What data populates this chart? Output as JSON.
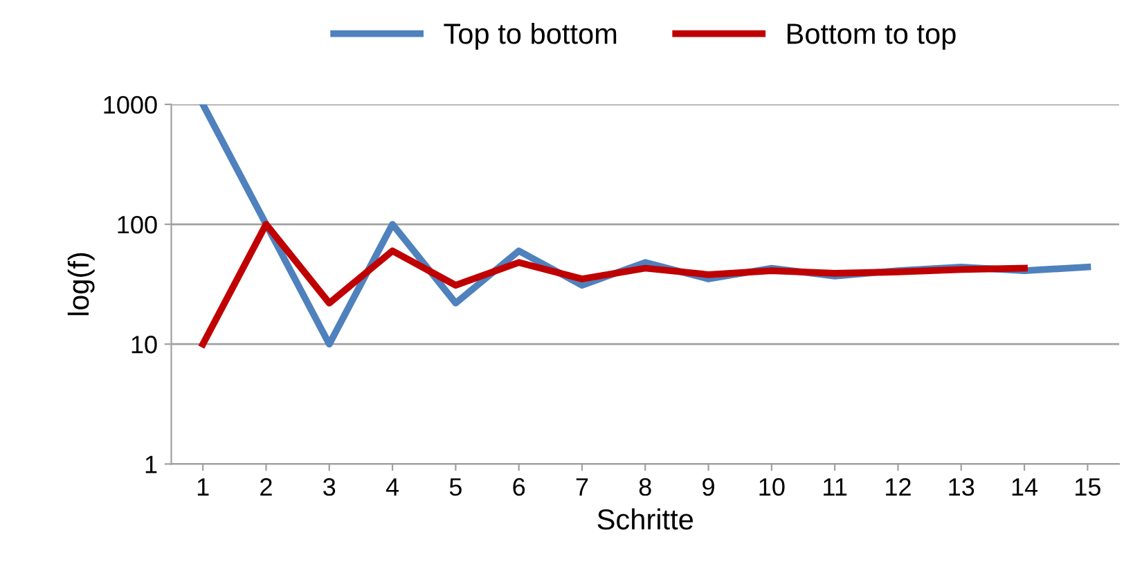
{
  "chart_data": {
    "type": "line",
    "xlabel": "Schritte",
    "ylabel": "log(f)",
    "log": "y",
    "ylim": [
      1,
      1000
    ],
    "yticks": [
      1,
      10,
      100,
      1000
    ],
    "grid": "y",
    "legend": "top",
    "line_style": "solid",
    "marker": "none",
    "categories": [
      "1",
      "2",
      "3",
      "4",
      "5",
      "6",
      "7",
      "8",
      "9",
      "10",
      "11",
      "12",
      "13",
      "14",
      "15"
    ],
    "series": [
      {
        "name": "Top to bottom",
        "color": "#4f81bd",
        "values": [
          1000,
          100,
          10,
          100,
          22,
          60,
          31,
          48,
          35,
          43,
          37,
          41,
          44,
          41,
          44
        ]
      },
      {
        "name": "Bottom to top",
        "color": "#c00000",
        "values": [
          10,
          100,
          22,
          60,
          31,
          48,
          35,
          43,
          38,
          41,
          39,
          40,
          42,
          43,
          null
        ]
      }
    ]
  }
}
